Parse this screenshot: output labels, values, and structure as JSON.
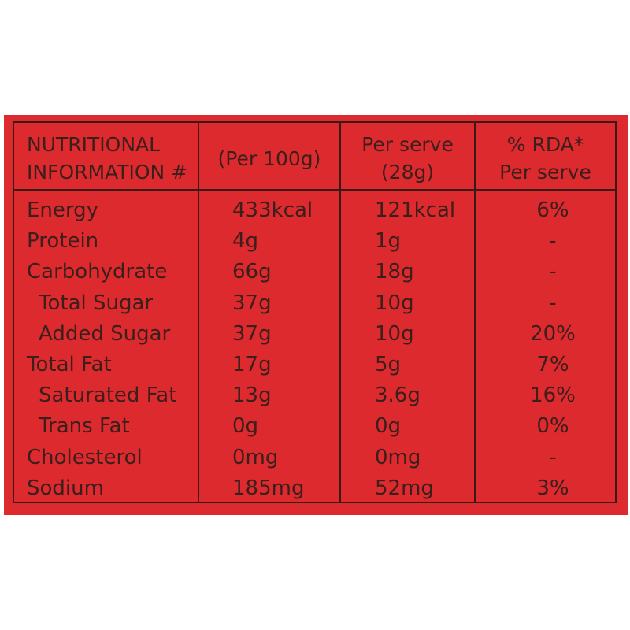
{
  "colors": {
    "panel": "#dc2a2e",
    "text": "#3b1f1c",
    "rule": "#3a1a18"
  },
  "headers": {
    "nutrient_line1": "NUTRITIONAL",
    "nutrient_line2": "INFORMATION #",
    "per100g": "(Per 100g)",
    "per_serve_line1": "Per serve",
    "per_serve_line2": "(28g)",
    "rda_line1": "% RDA*",
    "rda_line2": "Per serve"
  },
  "rows": [
    {
      "name": "Energy",
      "indent": false,
      "per100g": "433kcal",
      "per_serve": "121kcal",
      "rda": "6%"
    },
    {
      "name": "Protein",
      "indent": false,
      "per100g": "4g",
      "per_serve": "1g",
      "rda": "-"
    },
    {
      "name": "Carbohydrate",
      "indent": false,
      "per100g": "66g",
      "per_serve": "18g",
      "rda": "-"
    },
    {
      "name": "Total Sugar",
      "indent": true,
      "per100g": "37g",
      "per_serve": "10g",
      "rda": "-"
    },
    {
      "name": "Added Sugar",
      "indent": true,
      "per100g": "37g",
      "per_serve": "10g",
      "rda": "20%"
    },
    {
      "name": "Total Fat",
      "indent": false,
      "per100g": "17g",
      "per_serve": "5g",
      "rda": "7%"
    },
    {
      "name": "Saturated Fat",
      "indent": true,
      "per100g": "13g",
      "per_serve": "3.6g",
      "rda": "16%"
    },
    {
      "name": "Trans Fat",
      "indent": true,
      "per100g": "0g",
      "per_serve": "0g",
      "rda": "0%"
    },
    {
      "name": "Cholesterol",
      "indent": false,
      "per100g": "0mg",
      "per_serve": "0mg",
      "rda": "-"
    },
    {
      "name": "Sodium",
      "indent": false,
      "per100g": "185mg",
      "per_serve": "52mg",
      "rda": "3%"
    }
  ]
}
